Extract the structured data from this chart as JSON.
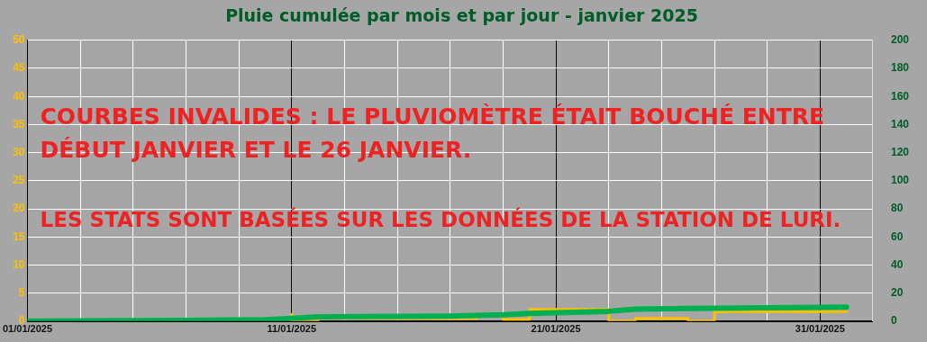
{
  "chart_data": {
    "type": "line",
    "title": "Pluie cumulée par mois et par jour - janvier 2025",
    "annotations": [
      "COURBES INVALIDES : LE PLUVIOMÈTRE ÉTAIT BOUCHÉ ENTRE",
      "DÉBUT JANVIER ET LE 26 JANVIER.",
      "LES STATS SONT BASÉES SUR LES DONNÉES DE LA STATION DE LURI."
    ],
    "series": [
      {
        "type": "step",
        "color": "#ffc000",
        "x": [
          "2025-01-11",
          "2025-01-12",
          "2025-01-18",
          "2025-01-19",
          "2025-01-20",
          "2025-01-23",
          "2025-01-24",
          "2025-01-26",
          "2025-01-27",
          "2025-01-31",
          "2025-02-01"
        ],
        "values": [
          1.2,
          0,
          0.5,
          1,
          0.3,
          2.1,
          0,
          0.5,
          0,
          1.7,
          1.7
        ]
      },
      {
        "type": "line",
        "axis": "y2",
        "color": "#00b050",
        "x": [
          "2025-01-01",
          "2025-01-07",
          "2025-01-10",
          "2025-01-11",
          "2025-01-12",
          "2025-01-17",
          "2025-01-19",
          "2025-01-20",
          "2025-01-21",
          "2025-01-23",
          "2025-01-24",
          "2025-01-26",
          "2025-02-01"
        ],
        "values": [
          0,
          0.5,
          1,
          2,
          3,
          3.5,
          4.5,
          5.5,
          6,
          7,
          8.5,
          9,
          10
        ]
      }
    ],
    "xlim": [
      "2025-01-01",
      "2025-02-02"
    ],
    "xticks": [
      {
        "value": "2025-01-01",
        "label": "01/01/2025"
      },
      {
        "value": "2025-01-03",
        "label": null
      },
      {
        "value": "2025-01-05",
        "label": null
      },
      {
        "value": "2025-01-07",
        "label": null
      },
      {
        "value": "2025-01-09",
        "label": null
      },
      {
        "value": "2025-01-11",
        "label": "11/01/2025"
      },
      {
        "value": "2025-01-13",
        "label": null
      },
      {
        "value": "2025-01-15",
        "label": null
      },
      {
        "value": "2025-01-17",
        "label": null
      },
      {
        "value": "2025-01-19",
        "label": null
      },
      {
        "value": "2025-01-21",
        "label": "21/01/2025"
      },
      {
        "value": "2025-01-23",
        "label": null
      },
      {
        "value": "2025-01-25",
        "label": null
      },
      {
        "value": "2025-01-27",
        "label": null
      },
      {
        "value": "2025-01-29",
        "label": null
      },
      {
        "value": "2025-01-31",
        "label": "31/01/2025"
      }
    ],
    "ylim": [
      0,
      50
    ],
    "yticks": [
      0,
      5,
      10,
      15,
      20,
      25,
      30,
      35,
      40,
      45,
      50
    ],
    "y2lim": [
      0,
      200
    ],
    "y2ticks": [
      0,
      20,
      40,
      60,
      80,
      100,
      120,
      140,
      160,
      180,
      200
    ],
    "grid": true,
    "legend": false,
    "marker": "none",
    "line_style": "solid"
  }
}
